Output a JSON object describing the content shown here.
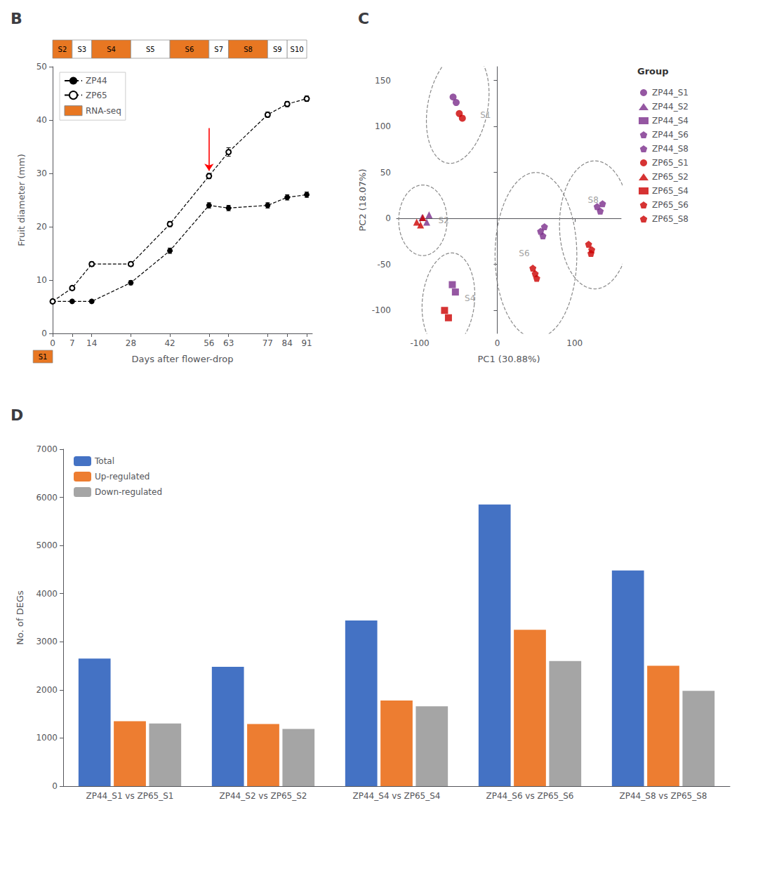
{
  "chart_data": [
    {
      "type": "line",
      "title": "B",
      "xlabel": "Days after flower-drop",
      "ylabel": "Fruit diameter (mm)",
      "x": [
        0,
        7,
        14,
        28,
        42,
        56,
        63,
        77,
        84,
        91
      ],
      "xlim": [
        0,
        93
      ],
      "xticks": [
        0,
        7,
        14,
        28,
        42,
        56,
        63,
        77,
        84,
        91
      ],
      "ylim": [
        0,
        50
      ],
      "yticks": [
        0,
        10,
        20,
        30,
        40,
        50
      ],
      "grid": false,
      "legend": "upper left",
      "line_style": "dashed",
      "series": [
        {
          "name": "ZP44",
          "color": "#000000",
          "marker": "circle",
          "values": [
            6.0,
            6.0,
            6.0,
            9.5,
            15.5,
            24.0,
            23.5,
            24.0,
            25.5,
            26.0
          ],
          "errors": [
            0.3,
            0.3,
            0.3,
            0.4,
            0.5,
            0.5,
            0.5,
            0.5,
            0.5,
            0.5
          ]
        },
        {
          "name": "ZP65",
          "color": "#000000",
          "marker": "open_circle",
          "values": [
            6.0,
            8.5,
            13.0,
            13.0,
            20.5,
            29.5,
            34.0,
            41.0,
            43.0,
            44.0
          ],
          "errors": [
            0.3,
            0.4,
            0.4,
            0.4,
            0.5,
            0.5,
            0.8,
            0.5,
            0.5,
            0.5
          ]
        }
      ],
      "stages": {
        "name": "RNA-seq",
        "color": "#E87722",
        "bands": [
          {
            "label": "S1",
            "from": -7,
            "to": 0,
            "highlighted": true
          },
          {
            "label": "S2",
            "from": 0,
            "to": 7,
            "highlighted": true
          },
          {
            "label": "S3",
            "from": 7,
            "to": 14,
            "highlighted": false
          },
          {
            "label": "S4",
            "from": 14,
            "to": 28,
            "highlighted": true
          },
          {
            "label": "S5",
            "from": 28,
            "to": 42,
            "highlighted": false
          },
          {
            "label": "S6",
            "from": 42,
            "to": 56,
            "highlighted": true
          },
          {
            "label": "S7",
            "from": 56,
            "to": 63,
            "highlighted": false
          },
          {
            "label": "S8",
            "from": 63,
            "to": 77,
            "highlighted": true
          },
          {
            "label": "S9",
            "from": 77,
            "to": 84,
            "highlighted": false
          },
          {
            "label": "S10",
            "from": 84,
            "to": 91,
            "highlighted": false
          }
        ]
      },
      "arrows": [
        {
          "x": 56,
          "y_from": 38.5,
          "y_to": 30.5,
          "color": "red"
        }
      ]
    },
    {
      "type": "scatter",
      "title": "C",
      "xlabel": "PC1 (30.88%)",
      "ylabel": "PC2 (18.07%)",
      "xlim": [
        -130,
        160
      ],
      "xticks": [
        -100,
        0,
        100
      ],
      "ylim": [
        -125,
        165
      ],
      "yticks": [
        -100,
        -50,
        0,
        50,
        100,
        150
      ],
      "grid": false,
      "legend": "right",
      "legend_title": "Group",
      "series": [
        {
          "name": "ZP44_S1",
          "color": "#7B2D8B",
          "marker": "circle",
          "x": [
            -57,
            -53
          ],
          "values": [
            132,
            126
          ]
        },
        {
          "name": "ZP44_S2",
          "color": "#7B2D8B",
          "marker": "triangle",
          "x": [
            -97,
            -91,
            -88
          ],
          "values": [
            1,
            -4,
            4
          ]
        },
        {
          "name": "ZP44_S4",
          "color": "#7B2D8B",
          "marker": "square",
          "x": [
            -58,
            -54
          ],
          "values": [
            -72,
            -80
          ]
        },
        {
          "name": "ZP44_S6",
          "color": "#7B2D8B",
          "marker": "pentagon",
          "x": [
            56,
            61,
            59
          ],
          "values": [
            -14,
            -9,
            -19
          ]
        },
        {
          "name": "ZP44_S8",
          "color": "#7B2D8B",
          "marker": "pentagon",
          "x": [
            129,
            133,
            136
          ],
          "values": [
            13,
            8,
            16
          ]
        },
        {
          "name": "ZP65_S1",
          "color": "#CC0000",
          "marker": "circle",
          "x": [
            -49,
            -45
          ],
          "values": [
            114,
            109
          ]
        },
        {
          "name": "ZP65_S2",
          "color": "#CC0000",
          "marker": "triangle",
          "x": [
            -104,
            -99,
            -96
          ],
          "values": [
            -4,
            -7,
            1
          ]
        },
        {
          "name": "ZP65_S4",
          "color": "#CC0000",
          "marker": "square",
          "x": [
            -68,
            -63
          ],
          "values": [
            -100,
            -108
          ]
        },
        {
          "name": "ZP65_S6",
          "color": "#CC0000",
          "marker": "pentagon",
          "x": [
            46,
            49,
            51
          ],
          "values": [
            -54,
            -60,
            -65
          ]
        },
        {
          "name": "ZP65_S8",
          "color": "#CC0000",
          "marker": "pentagon",
          "x": [
            118,
            122,
            121
          ],
          "values": [
            -28,
            -34,
            -38
          ]
        }
      ],
      "ellipses": [
        {
          "cx": -51,
          "cy": 121,
          "width": 76.8,
          "height": 124.8,
          "angle": -15,
          "label": "S1",
          "label_x": -22,
          "label_y": 112,
          "color": "#888888",
          "line_style": "dashed"
        },
        {
          "cx": -96,
          "cy": -2,
          "width": 62.4,
          "height": 76.8,
          "angle": 0,
          "label": "S2",
          "label_x": -76,
          "label_y": -2,
          "color": "#888888",
          "line_style": "dashed"
        },
        {
          "cx": -63,
          "cy": -90,
          "width": 67.2,
          "height": 105.6,
          "angle": -8,
          "label": "S4",
          "label_x": -42,
          "label_y": -87,
          "color": "#888888",
          "line_style": "dashed"
        },
        {
          "cx": 50,
          "cy": -40,
          "width": 105.6,
          "height": 180,
          "angle": 0,
          "label": "S6",
          "label_x": 28,
          "label_y": -38,
          "color": "#888888",
          "line_style": "dashed"
        },
        {
          "cx": 126,
          "cy": -7,
          "width": 91.2,
          "height": 139.2,
          "angle": 0,
          "label": "S8",
          "label_x": 117,
          "label_y": 20,
          "color": "#888888",
          "line_style": "dashed"
        }
      ]
    },
    {
      "type": "bar",
      "title": "D",
      "ylabel": "No. of DEGs",
      "categories": [
        "ZP44_S1 vs ZP65_S1",
        "ZP44_S2 vs ZP65_S2",
        "ZP44_S4 vs ZP65_S4",
        "ZP44_S6 vs ZP65_S6",
        "ZP44_S8 vs ZP65_S8"
      ],
      "ylim": [
        0,
        7000
      ],
      "yticks": [
        0,
        1000,
        2000,
        3000,
        4000,
        5000,
        6000,
        7000
      ],
      "grid": false,
      "legend": "upper left",
      "series": [
        {
          "name": "Total",
          "color": "#4472C4",
          "values": [
            2650,
            2480,
            3440,
            5850,
            4480
          ]
        },
        {
          "name": "Up-regulated",
          "color": "#ED7D31",
          "values": [
            1350,
            1290,
            1780,
            3250,
            2500
          ]
        },
        {
          "name": "Down-regulated",
          "color": "#A5A5A5",
          "values": [
            1300,
            1190,
            1660,
            2600,
            1980
          ]
        }
      ]
    }
  ]
}
